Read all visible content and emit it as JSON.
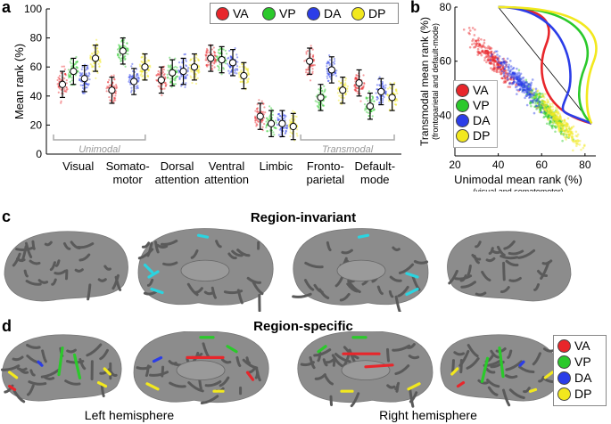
{
  "panel_a": {
    "label": "a",
    "ylabel": "Mean rank (%)",
    "yticks": [
      "0",
      "20",
      "40",
      "60",
      "80",
      "100"
    ],
    "group_labels": [
      {
        "line1": "Visual",
        "line2": ""
      },
      {
        "line1": "Somato-",
        "line2": "motor"
      },
      {
        "line1": "Dorsal",
        "line2": "attention"
      },
      {
        "line1": "Ventral",
        "line2": "attention"
      },
      {
        "line1": "Limbic",
        "line2": ""
      },
      {
        "line1": "Fronto-",
        "line2": "parietal"
      },
      {
        "line1": "Default-",
        "line2": "mode"
      }
    ],
    "bracket_unimodal": "Unimodal",
    "bracket_transmodal": "Transmodal",
    "legend": [
      "VA",
      "VP",
      "DA",
      "DP"
    ]
  },
  "panel_b": {
    "label": "b",
    "ylabel_main": "Transmodal mean rank (%)",
    "ylabel_sub": "(frontoparietal and default-mode)",
    "xlabel_main": "Unimodal mean rank (%)",
    "xlabel_sub": "(visual and somatomotor)",
    "xticks": [
      "20",
      "40",
      "60",
      "80"
    ],
    "yticks": [
      "40",
      "60",
      "80"
    ],
    "legend": [
      "VA",
      "VP",
      "DA",
      "DP"
    ]
  },
  "panel_c": {
    "label": "c",
    "title": "Region-invariant"
  },
  "panel_d": {
    "label": "d",
    "title": "Region-specific",
    "left_caption": "Left hemisphere",
    "right_caption": "Right hemisphere",
    "legend": [
      "VA",
      "VP",
      "DA",
      "DP"
    ]
  },
  "colors": {
    "VA": "#e8262b",
    "VP": "#2bc92b",
    "DA": "#2b3de8",
    "DP": "#f2e81e",
    "cyan": "#2ad4e0",
    "brain_dark": "#5a5a5a",
    "brain_light": "#8c8c8c"
  },
  "chart_data": [
    {
      "type": "violin",
      "title": "",
      "ylabel": "Mean rank (%)",
      "ylim": [
        0,
        100
      ],
      "categories": [
        "Visual",
        "Somatomotor",
        "Dorsal attention",
        "Ventral attention",
        "Limbic",
        "Frontoparietal",
        "Default-mode"
      ],
      "series": [
        {
          "name": "VA",
          "values": [
            48,
            44,
            51,
            66,
            26,
            64,
            49
          ]
        },
        {
          "name": "VP",
          "values": [
            57,
            71,
            56,
            65,
            21,
            39,
            33
          ]
        },
        {
          "name": "DA",
          "values": [
            52,
            50,
            57,
            63,
            21,
            58,
            43
          ]
        },
        {
          "name": "DP",
          "values": [
            66,
            60,
            60,
            54,
            19,
            44,
            39
          ]
        }
      ],
      "legend": "top-right"
    },
    {
      "type": "scatter",
      "title": "",
      "xlabel": "Unimodal mean rank (%)",
      "ylabel": "Transmodal mean rank (%)",
      "xlim": [
        20,
        85
      ],
      "ylim": [
        25,
        80
      ],
      "series": [
        {
          "name": "VA",
          "x": [
            30,
            35,
            40,
            45,
            50
          ],
          "y": [
            67,
            62,
            57,
            52,
            47
          ]
        },
        {
          "name": "VP",
          "x": [
            45,
            52,
            60,
            67,
            74
          ],
          "y": [
            52,
            46,
            40,
            35,
            30
          ]
        },
        {
          "name": "DA",
          "x": [
            35,
            42,
            50,
            58,
            66
          ],
          "y": [
            62,
            55,
            48,
            42,
            36
          ]
        },
        {
          "name": "DP",
          "x": [
            50,
            57,
            64,
            70,
            76
          ],
          "y": [
            48,
            42,
            37,
            32,
            28
          ]
        }
      ],
      "legend": "left"
    }
  ]
}
